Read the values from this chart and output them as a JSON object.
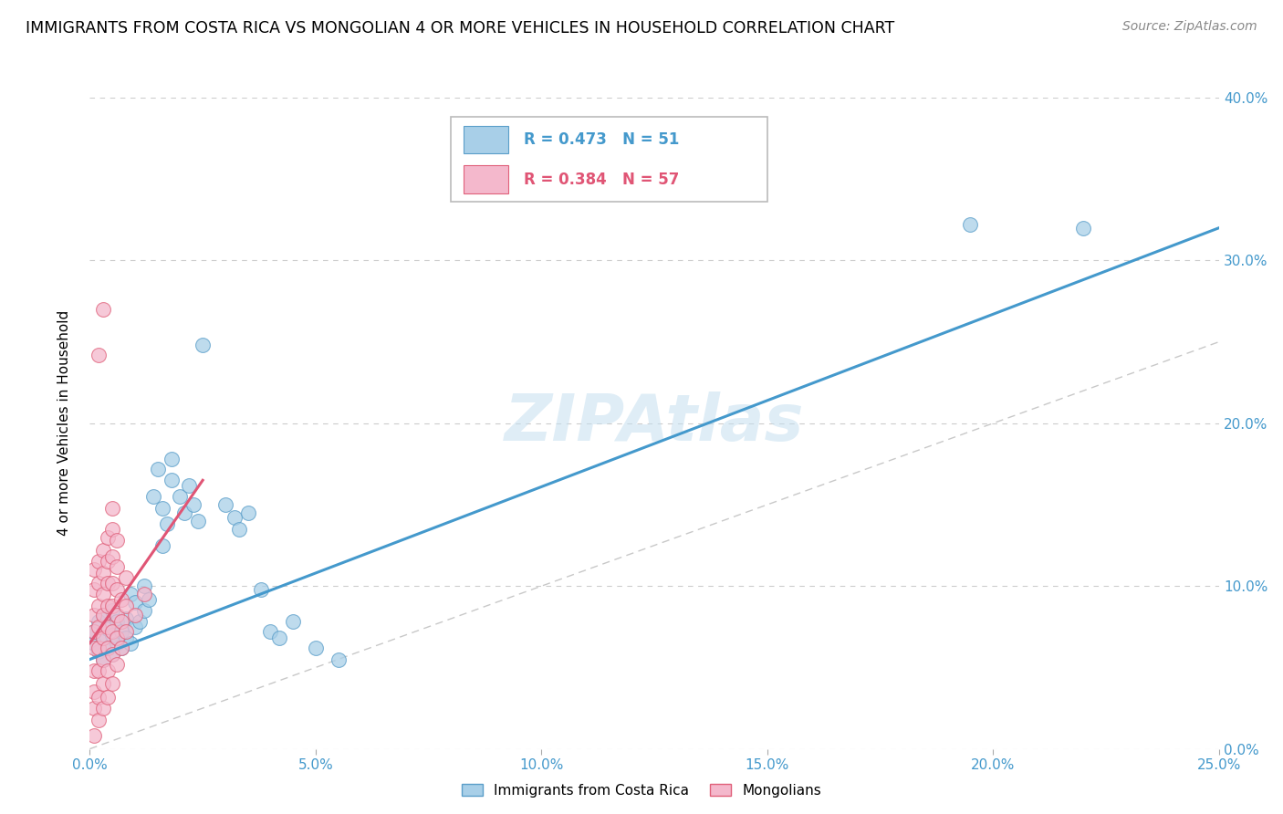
{
  "title": "IMMIGRANTS FROM COSTA RICA VS MONGOLIAN 4 OR MORE VEHICLES IN HOUSEHOLD CORRELATION CHART",
  "source": "Source: ZipAtlas.com",
  "ylabel": "4 or more Vehicles in Household",
  "xlim": [
    0.0,
    0.25
  ],
  "ylim": [
    0.0,
    0.4
  ],
  "xticks": [
    0.0,
    0.05,
    0.1,
    0.15,
    0.2,
    0.25
  ],
  "yticks": [
    0.0,
    0.1,
    0.2,
    0.3,
    0.4
  ],
  "xtick_labels": [
    "0.0%",
    "5.0%",
    "10.0%",
    "15.0%",
    "20.0%",
    "25.0%"
  ],
  "ytick_labels": [
    "0.0%",
    "10.0%",
    "20.0%",
    "30.0%",
    "40.0%"
  ],
  "legend1_label": "Immigrants from Costa Rica",
  "legend2_label": "Mongolians",
  "R1": 0.473,
  "N1": 51,
  "R2": 0.384,
  "N2": 57,
  "color_blue": "#a8cfe8",
  "color_pink": "#f4b8cc",
  "color_blue_dark": "#5a9ec9",
  "color_pink_dark": "#e0607a",
  "color_blue_text": "#4499cc",
  "color_pink_text": "#e05575",
  "color_line_blue": "#4499cc",
  "color_line_pink": "#e05575",
  "color_diagonal": "#bbbbbb",
  "watermark": "ZIPAtlas",
  "scatter_blue": [
    [
      0.001,
      0.065
    ],
    [
      0.001,
      0.072
    ],
    [
      0.002,
      0.06
    ],
    [
      0.002,
      0.078
    ],
    [
      0.003,
      0.055
    ],
    [
      0.003,
      0.068
    ],
    [
      0.003,
      0.082
    ],
    [
      0.004,
      0.062
    ],
    [
      0.004,
      0.074
    ],
    [
      0.005,
      0.058
    ],
    [
      0.005,
      0.07
    ],
    [
      0.005,
      0.085
    ],
    [
      0.006,
      0.065
    ],
    [
      0.006,
      0.078
    ],
    [
      0.007,
      0.062
    ],
    [
      0.007,
      0.072
    ],
    [
      0.008,
      0.068
    ],
    [
      0.008,
      0.08
    ],
    [
      0.009,
      0.065
    ],
    [
      0.009,
      0.095
    ],
    [
      0.01,
      0.075
    ],
    [
      0.01,
      0.09
    ],
    [
      0.011,
      0.078
    ],
    [
      0.012,
      0.085
    ],
    [
      0.012,
      0.1
    ],
    [
      0.013,
      0.092
    ],
    [
      0.014,
      0.155
    ],
    [
      0.015,
      0.172
    ],
    [
      0.016,
      0.125
    ],
    [
      0.016,
      0.148
    ],
    [
      0.017,
      0.138
    ],
    [
      0.018,
      0.165
    ],
    [
      0.018,
      0.178
    ],
    [
      0.02,
      0.155
    ],
    [
      0.021,
      0.145
    ],
    [
      0.022,
      0.162
    ],
    [
      0.023,
      0.15
    ],
    [
      0.024,
      0.14
    ],
    [
      0.025,
      0.248
    ],
    [
      0.03,
      0.15
    ],
    [
      0.032,
      0.142
    ],
    [
      0.033,
      0.135
    ],
    [
      0.035,
      0.145
    ],
    [
      0.038,
      0.098
    ],
    [
      0.04,
      0.072
    ],
    [
      0.042,
      0.068
    ],
    [
      0.045,
      0.078
    ],
    [
      0.05,
      0.062
    ],
    [
      0.055,
      0.055
    ],
    [
      0.195,
      0.322
    ],
    [
      0.22,
      0.32
    ]
  ],
  "scatter_pink": [
    [
      0.001,
      0.008
    ],
    [
      0.001,
      0.025
    ],
    [
      0.001,
      0.035
    ],
    [
      0.001,
      0.048
    ],
    [
      0.001,
      0.062
    ],
    [
      0.001,
      0.072
    ],
    [
      0.001,
      0.082
    ],
    [
      0.001,
      0.098
    ],
    [
      0.001,
      0.11
    ],
    [
      0.002,
      0.018
    ],
    [
      0.002,
      0.032
    ],
    [
      0.002,
      0.048
    ],
    [
      0.002,
      0.062
    ],
    [
      0.002,
      0.075
    ],
    [
      0.002,
      0.088
    ],
    [
      0.002,
      0.102
    ],
    [
      0.002,
      0.115
    ],
    [
      0.002,
      0.242
    ],
    [
      0.003,
      0.025
    ],
    [
      0.003,
      0.04
    ],
    [
      0.003,
      0.055
    ],
    [
      0.003,
      0.068
    ],
    [
      0.003,
      0.082
    ],
    [
      0.003,
      0.095
    ],
    [
      0.003,
      0.108
    ],
    [
      0.003,
      0.122
    ],
    [
      0.003,
      0.27
    ],
    [
      0.004,
      0.032
    ],
    [
      0.004,
      0.048
    ],
    [
      0.004,
      0.062
    ],
    [
      0.004,
      0.075
    ],
    [
      0.004,
      0.088
    ],
    [
      0.004,
      0.102
    ],
    [
      0.004,
      0.115
    ],
    [
      0.004,
      0.13
    ],
    [
      0.005,
      0.04
    ],
    [
      0.005,
      0.058
    ],
    [
      0.005,
      0.072
    ],
    [
      0.005,
      0.088
    ],
    [
      0.005,
      0.102
    ],
    [
      0.005,
      0.118
    ],
    [
      0.005,
      0.135
    ],
    [
      0.005,
      0.148
    ],
    [
      0.006,
      0.052
    ],
    [
      0.006,
      0.068
    ],
    [
      0.006,
      0.082
    ],
    [
      0.006,
      0.098
    ],
    [
      0.006,
      0.112
    ],
    [
      0.006,
      0.128
    ],
    [
      0.007,
      0.062
    ],
    [
      0.007,
      0.078
    ],
    [
      0.007,
      0.092
    ],
    [
      0.008,
      0.072
    ],
    [
      0.008,
      0.088
    ],
    [
      0.008,
      0.105
    ],
    [
      0.01,
      0.082
    ],
    [
      0.012,
      0.095
    ]
  ],
  "line_blue": {
    "x0": 0.0,
    "x1": 0.25,
    "y0": 0.055,
    "y1": 0.32
  },
  "line_pink": {
    "x0": 0.0,
    "x1": 0.025,
    "y0": 0.065,
    "y1": 0.165
  }
}
